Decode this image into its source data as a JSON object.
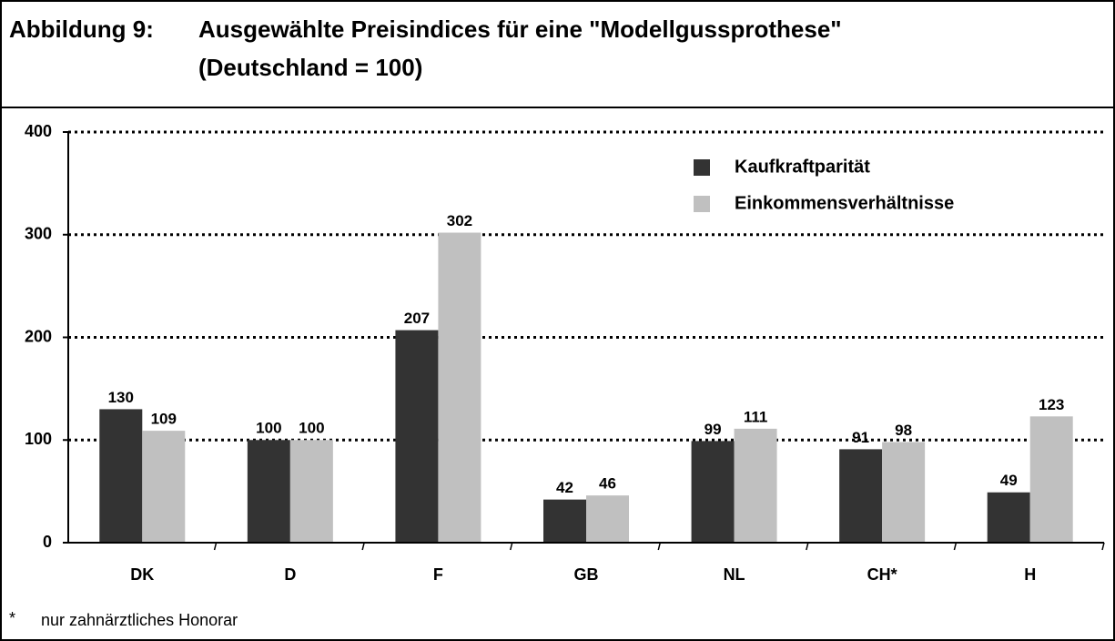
{
  "chart_data": {
    "type": "bar",
    "figure_label": "Abbildung 9:",
    "title": "Ausgewählte Preisindices für eine \"Modellgussprothese\"",
    "subtitle": "(Deutschland = 100)",
    "categories": [
      "DK",
      "D",
      "F",
      "GB",
      "NL",
      "CH*",
      "H"
    ],
    "series": [
      {
        "name": "Kaufkraftparität",
        "color": "#333333",
        "values": [
          130,
          100,
          207,
          42,
          99,
          91,
          49
        ]
      },
      {
        "name": "Einkommensverhältnisse",
        "color": "#c0c0c0",
        "values": [
          109,
          100,
          302,
          46,
          111,
          98,
          123
        ]
      }
    ],
    "ylim": [
      0,
      400
    ],
    "yticks": [
      0,
      100,
      200,
      300,
      400
    ],
    "grid": true,
    "legend": "upper right",
    "footnote": {
      "marker": "*",
      "text": "nur zahnärztliches Honorar"
    }
  }
}
